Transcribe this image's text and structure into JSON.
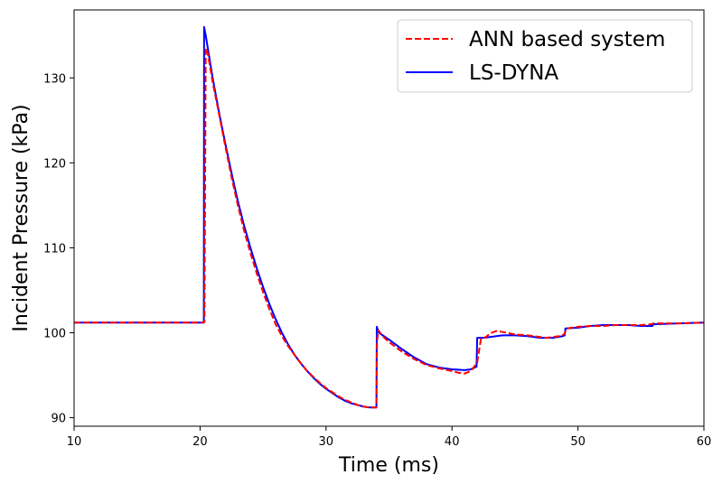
{
  "chart_data": {
    "type": "line",
    "xlabel": "Time (ms)",
    "ylabel": "Incident Pressure (kPa)",
    "xlim": [
      10,
      60
    ],
    "ylim": [
      89,
      138
    ],
    "xticks": [
      10,
      20,
      30,
      40,
      50,
      60
    ],
    "yticks": [
      90,
      100,
      110,
      120,
      130
    ],
    "grid": false,
    "legend_position": "top-right",
    "series": [
      {
        "name": "ANN based system",
        "color": "#ff0000",
        "style": "dashed",
        "points": [
          [
            10,
            101.2
          ],
          [
            20.3,
            101.2
          ],
          [
            20.35,
            101.3
          ],
          [
            20.45,
            133.5
          ],
          [
            20.6,
            133.0
          ],
          [
            21,
            129.5
          ],
          [
            21.5,
            125.8
          ],
          [
            22,
            122.0
          ],
          [
            22.5,
            118.3
          ],
          [
            23,
            115.0
          ],
          [
            23.5,
            112.0
          ],
          [
            24,
            109.4
          ],
          [
            24.5,
            107.0
          ],
          [
            25,
            104.8
          ],
          [
            25.5,
            102.8
          ],
          [
            26,
            101.0
          ],
          [
            26.5,
            99.6
          ],
          [
            27,
            98.4
          ],
          [
            27.5,
            97.4
          ],
          [
            28,
            96.4
          ],
          [
            28.5,
            95.5
          ],
          [
            29,
            94.8
          ],
          [
            29.5,
            94.1
          ],
          [
            30,
            93.5
          ],
          [
            30.5,
            93.0
          ],
          [
            31,
            92.5
          ],
          [
            31.5,
            92.1
          ],
          [
            32,
            91.8
          ],
          [
            32.5,
            91.5
          ],
          [
            33,
            91.3
          ],
          [
            33.5,
            91.2
          ],
          [
            34.0,
            91.2
          ],
          [
            34.05,
            99.0
          ],
          [
            34.15,
            100.3
          ],
          [
            34.5,
            99.6
          ],
          [
            35,
            98.9
          ],
          [
            36,
            97.8
          ],
          [
            37,
            96.9
          ],
          [
            38,
            96.2
          ],
          [
            39,
            95.8
          ],
          [
            40,
            95.5
          ],
          [
            40.5,
            95.3
          ],
          [
            41,
            95.2
          ],
          [
            41.5,
            95.5
          ],
          [
            42,
            96.5
          ],
          [
            42.3,
            99.3
          ],
          [
            42.7,
            99.5
          ],
          [
            43.0,
            99.9
          ],
          [
            43.5,
            100.2
          ],
          [
            44,
            100.1
          ],
          [
            45,
            99.8
          ],
          [
            46,
            99.7
          ],
          [
            47,
            99.5
          ],
          [
            47.5,
            99.4
          ],
          [
            48.5,
            99.6
          ],
          [
            48.9,
            99.8
          ],
          [
            49.1,
            100.5
          ],
          [
            50,
            100.7
          ],
          [
            51,
            100.8
          ],
          [
            52,
            100.8
          ],
          [
            53,
            100.9
          ],
          [
            54,
            100.9
          ],
          [
            55,
            100.9
          ],
          [
            55.8,
            101.0
          ],
          [
            56,
            101.1
          ],
          [
            58,
            101.1
          ],
          [
            60,
            101.2
          ]
        ]
      },
      {
        "name": "LS-DYNA",
        "color": "#0000ff",
        "style": "solid",
        "points": [
          [
            10,
            101.2
          ],
          [
            20.3,
            101.2
          ],
          [
            20.32,
            136.0
          ],
          [
            20.45,
            135.0
          ],
          [
            21,
            130.0
          ],
          [
            21.5,
            126.0
          ],
          [
            22,
            122.3
          ],
          [
            22.5,
            118.8
          ],
          [
            23,
            115.5
          ],
          [
            23.5,
            112.6
          ],
          [
            24,
            110.0
          ],
          [
            24.5,
            107.6
          ],
          [
            25,
            105.4
          ],
          [
            25.5,
            103.4
          ],
          [
            26,
            101.6
          ],
          [
            26.5,
            100.0
          ],
          [
            27,
            98.6
          ],
          [
            27.5,
            97.4
          ],
          [
            28,
            96.4
          ],
          [
            28.5,
            95.5
          ],
          [
            29,
            94.7
          ],
          [
            29.5,
            94.0
          ],
          [
            30,
            93.4
          ],
          [
            30.5,
            92.9
          ],
          [
            31,
            92.4
          ],
          [
            31.5,
            92.0
          ],
          [
            32,
            91.7
          ],
          [
            32.5,
            91.5
          ],
          [
            33,
            91.3
          ],
          [
            33.5,
            91.2
          ],
          [
            34.0,
            91.2
          ],
          [
            34.03,
            100.7
          ],
          [
            34.2,
            100.0
          ],
          [
            35,
            99.2
          ],
          [
            36,
            98.1
          ],
          [
            37,
            97.1
          ],
          [
            38,
            96.3
          ],
          [
            39,
            95.9
          ],
          [
            40,
            95.7
          ],
          [
            41,
            95.6
          ],
          [
            41.5,
            95.7
          ],
          [
            41.95,
            96.0
          ],
          [
            42.0,
            99.4
          ],
          [
            42.5,
            99.4
          ],
          [
            43,
            99.5
          ],
          [
            44,
            99.7
          ],
          [
            45,
            99.7
          ],
          [
            46,
            99.6
          ],
          [
            47,
            99.4
          ],
          [
            48,
            99.4
          ],
          [
            48.8,
            99.6
          ],
          [
            48.95,
            99.7
          ],
          [
            49.0,
            100.5
          ],
          [
            50,
            100.6
          ],
          [
            51,
            100.8
          ],
          [
            52,
            100.9
          ],
          [
            53,
            100.9
          ],
          [
            54,
            100.9
          ],
          [
            55,
            100.8
          ],
          [
            55.9,
            100.8
          ],
          [
            56,
            101.0
          ],
          [
            58,
            101.1
          ],
          [
            60,
            101.2
          ]
        ]
      }
    ]
  }
}
